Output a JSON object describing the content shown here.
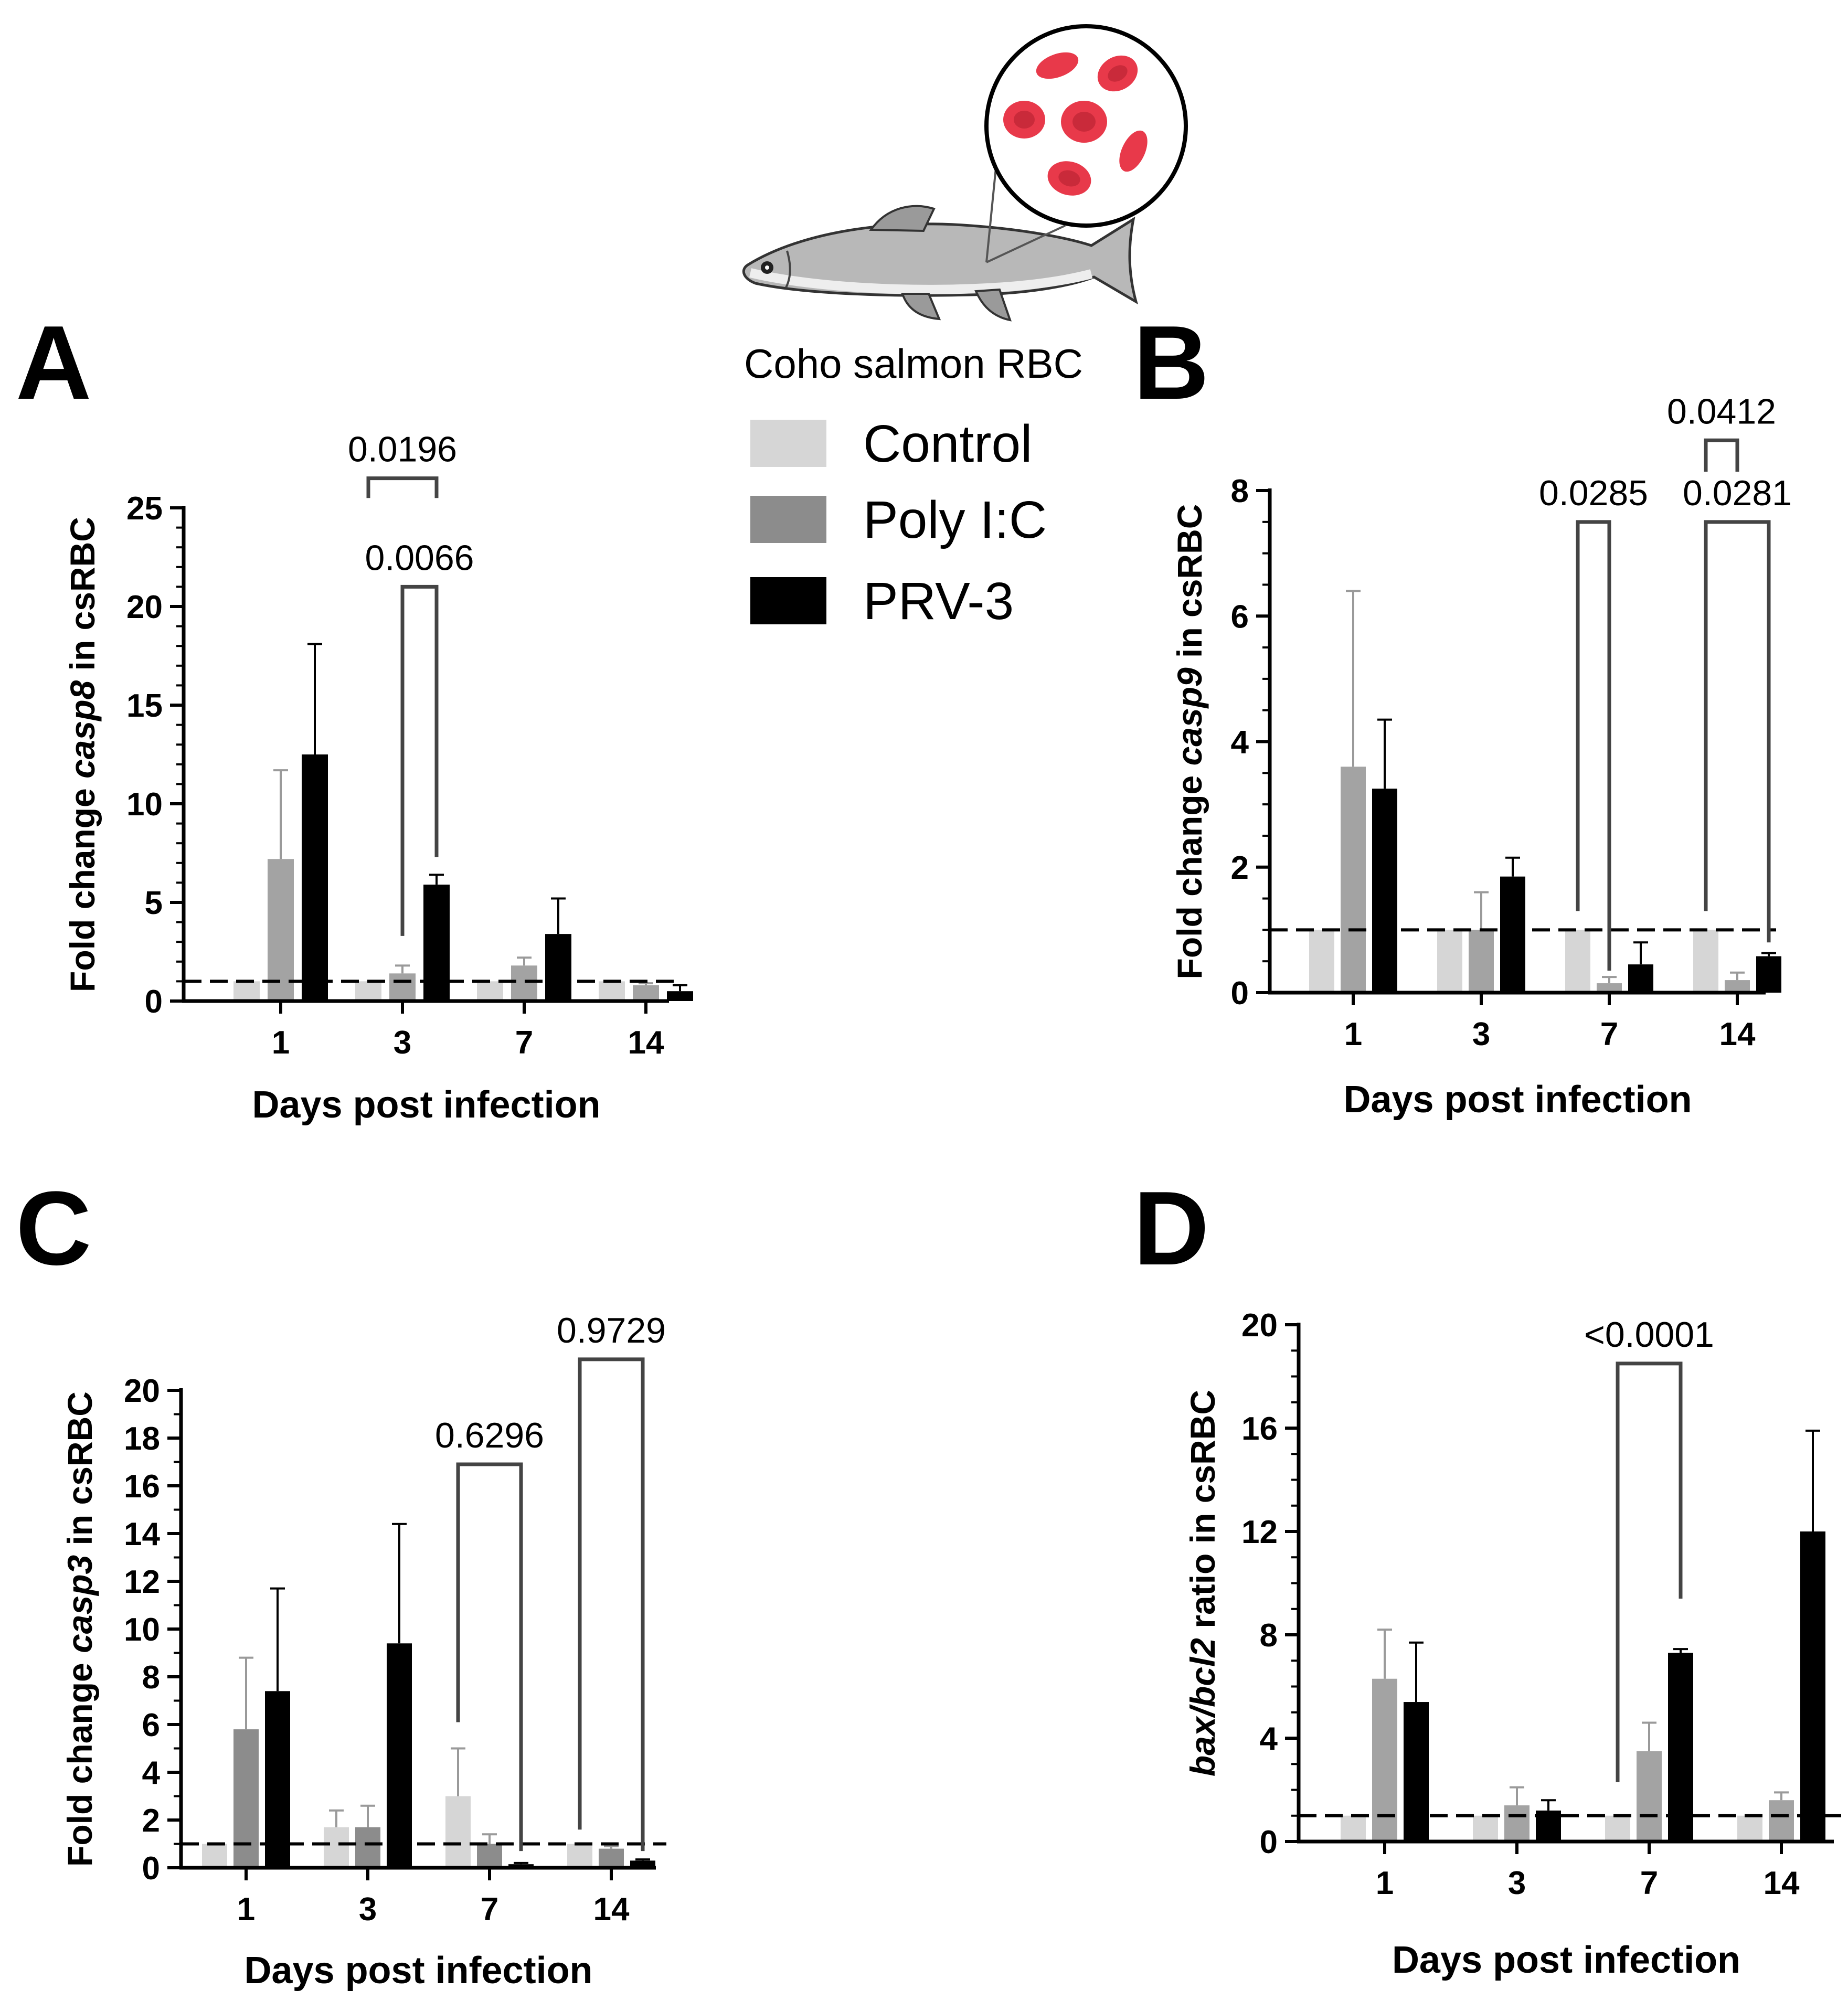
{
  "legend": {
    "title": "Coho salmon RBC",
    "items": [
      {
        "label": "Control",
        "color": "#d6d6d6"
      },
      {
        "label": "Poly I:C",
        "color": "#8c8c8c"
      },
      {
        "label": "PRV-3",
        "color": "#000000"
      }
    ]
  },
  "chart_data": [
    {
      "panel": "A",
      "type": "bar",
      "xlabel": "Days post infection",
      "ylabel_parts": [
        "Fold change ",
        "casp8",
        " in csRBC"
      ],
      "ylim": [
        0,
        25
      ],
      "yticks": [
        0,
        5,
        10,
        15,
        20,
        25
      ],
      "ytick_labels": [
        "0",
        "5",
        "10",
        "15",
        "20",
        "25"
      ],
      "categories": [
        "1",
        "3",
        "7",
        "14"
      ],
      "reference_line": 1,
      "series": [
        {
          "name": "Control",
          "color": "#d6d6d6",
          "values": [
            1.0,
            1.0,
            1.0,
            1.0
          ],
          "errors": [
            0,
            0,
            0,
            0
          ]
        },
        {
          "name": "Poly I:C",
          "color": "#a3a3a3",
          "values": [
            7.2,
            1.4,
            1.8,
            0.8
          ],
          "errors": [
            4.5,
            0.4,
            0.4,
            0.1
          ]
        },
        {
          "name": "PRV-3",
          "color": "#000000",
          "values": [
            12.5,
            5.9,
            3.4,
            0.5
          ],
          "errors": [
            5.6,
            0.5,
            1.8,
            0.3
          ]
        }
      ],
      "annotations": [
        {
          "label": "0.0196",
          "cat1": 1,
          "s1": 0,
          "cat2": 1,
          "s2": 2,
          "top": 26.5,
          "leg1": 25.5,
          "leg2": 25.5
        },
        {
          "label": "0.0066",
          "cat1": 1,
          "s1": 1,
          "cat2": 1,
          "s2": 2,
          "top": 21.0,
          "leg1": 3.3,
          "leg2": 7.3
        }
      ]
    },
    {
      "panel": "B",
      "type": "bar",
      "xlabel": "Days post infection",
      "ylabel_parts": [
        "Fold change ",
        "casp9",
        " in csRBC"
      ],
      "ylim": [
        0,
        8
      ],
      "yticks": [
        0,
        2,
        4,
        6,
        8
      ],
      "ytick_labels": [
        "0",
        "2",
        "4",
        "6",
        "8"
      ],
      "categories": [
        "1",
        "3",
        "7",
        "14"
      ],
      "reference_line": 1,
      "series": [
        {
          "name": "Control",
          "color": "#d6d6d6",
          "values": [
            1.0,
            1.0,
            1.0,
            1.0
          ],
          "errors": [
            0,
            0,
            0,
            0
          ]
        },
        {
          "name": "Poly I:C",
          "color": "#a3a3a3",
          "values": [
            3.6,
            1.0,
            0.15,
            0.2
          ],
          "errors": [
            2.8,
            0.6,
            0.1,
            0.12
          ]
        },
        {
          "name": "PRV-3",
          "color": "#000000",
          "values": [
            3.25,
            1.85,
            0.45,
            0.58
          ],
          "errors": [
            1.1,
            0.3,
            0.35,
            0.05
          ]
        }
      ],
      "annotations": [
        {
          "label": "0.0285",
          "cat1": 2,
          "s1": 0,
          "cat2": 2,
          "s2": 1,
          "top": 7.5,
          "leg1": 1.3,
          "leg2": 0.35
        },
        {
          "label": "0.0281",
          "cat1": 3,
          "s1": 0,
          "cat2": 3,
          "s2": 2,
          "top": 7.5,
          "leg1": 1.3,
          "leg2": 0.8
        },
        {
          "label": "0.0412",
          "cat1": 3,
          "s1": 0,
          "cat2": 3,
          "s2": 1,
          "top": 8.8,
          "leg1": 8.3,
          "leg2": 8.3
        }
      ]
    },
    {
      "panel": "C",
      "type": "bar",
      "xlabel": "Days post infection",
      "ylabel_parts": [
        "Fold change ",
        "casp3",
        " in csRBC"
      ],
      "ylim": [
        0,
        20
      ],
      "yticks": [
        0,
        2,
        4,
        6,
        8,
        10,
        12,
        14,
        16,
        18,
        20
      ],
      "ytick_labels": [
        "0",
        "2",
        "4",
        "6",
        "8",
        "10",
        "12",
        "14",
        "16",
        "18",
        "20"
      ],
      "categories": [
        "1",
        "3",
        "7",
        "14"
      ],
      "reference_line": 1,
      "series": [
        {
          "name": "Control",
          "color": "#d6d6d6",
          "values": [
            1.0,
            1.7,
            3.0,
            1.0
          ],
          "errors": [
            0,
            0.7,
            2.0,
            0
          ]
        },
        {
          "name": "Poly I:C",
          "color": "#8c8c8c",
          "values": [
            5.8,
            1.7,
            1.0,
            0.8
          ],
          "errors": [
            3.0,
            0.9,
            0.4,
            0.1
          ]
        },
        {
          "name": "PRV-3",
          "color": "#000000",
          "values": [
            7.4,
            9.4,
            0.15,
            0.3
          ],
          "errors": [
            4.3,
            5.0,
            0.05,
            0.05
          ]
        }
      ],
      "annotations": [
        {
          "label": "0.6296",
          "cat1": 2,
          "s1": 0,
          "cat2": 2,
          "s2": 2,
          "top": 16.9,
          "leg1": 6.1,
          "leg2": 0.7
        },
        {
          "label": "0.9729",
          "cat1": 3,
          "s1": 0,
          "cat2": 3,
          "s2": 2,
          "top": 21.3,
          "leg1": 1.6,
          "leg2": 0.7
        }
      ]
    },
    {
      "panel": "D",
      "type": "bar",
      "xlabel": "Days post infection",
      "ylabel_parts": [
        "",
        "bax/bcl2",
        " ratio in csRBC"
      ],
      "ylim": [
        0,
        20
      ],
      "yticks": [
        0,
        4,
        8,
        12,
        16,
        20
      ],
      "ytick_labels": [
        "0",
        "4",
        "8",
        "12",
        "16",
        "20"
      ],
      "categories": [
        "1",
        "3",
        "7",
        "14"
      ],
      "reference_line": 1,
      "series": [
        {
          "name": "Control",
          "color": "#d6d6d6",
          "values": [
            1.0,
            1.0,
            1.0,
            1.0
          ],
          "errors": [
            0,
            0,
            0,
            0
          ]
        },
        {
          "name": "Poly I:C",
          "color": "#a3a3a3",
          "values": [
            6.3,
            1.4,
            3.5,
            1.6
          ],
          "errors": [
            1.9,
            0.7,
            1.1,
            0.3
          ]
        },
        {
          "name": "PRV-3",
          "color": "#000000",
          "values": [
            5.4,
            1.2,
            7.3,
            12.0
          ],
          "errors": [
            2.3,
            0.4,
            0.15,
            3.9
          ]
        }
      ],
      "annotations": [
        {
          "label": "<0.0001",
          "cat1": 2,
          "s1": 0,
          "cat2": 2,
          "s2": 2,
          "top": 18.5,
          "leg1": 2.3,
          "leg2": 9.4
        }
      ]
    }
  ]
}
